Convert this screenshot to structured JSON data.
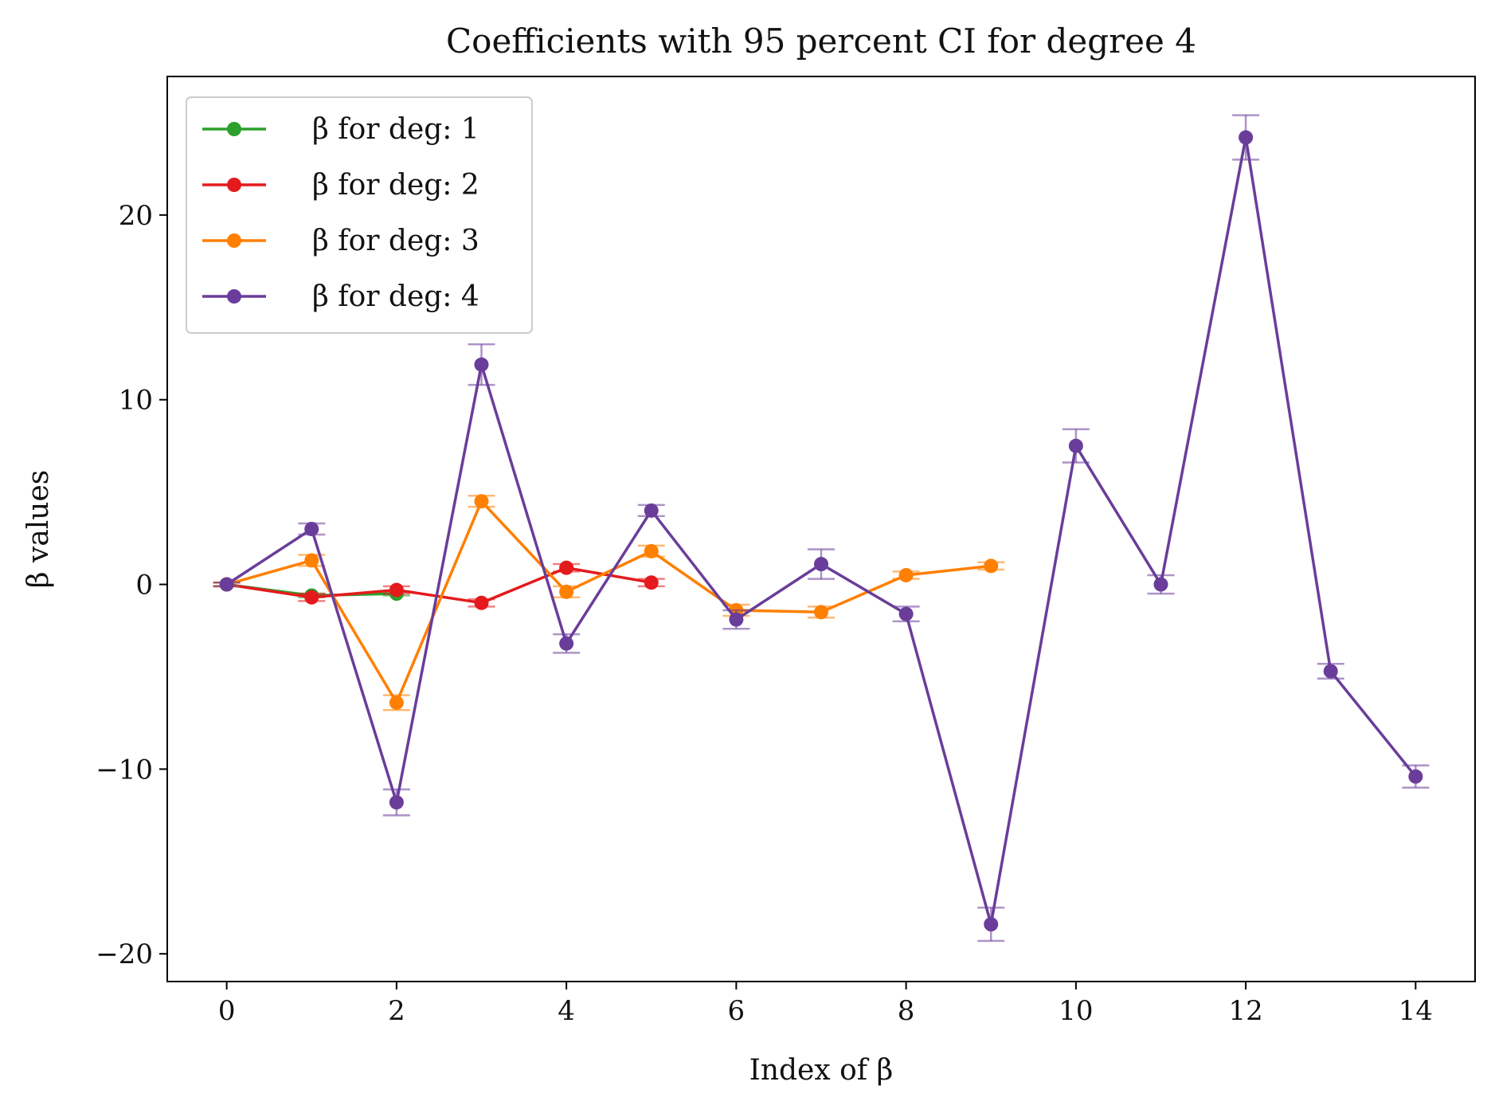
{
  "chart_data": {
    "type": "line",
    "title": "Coefficients with 95 percent CI for degree 4",
    "xlabel": "Index of β",
    "ylabel": "β values",
    "xlim": [
      -0.7,
      14.7
    ],
    "ylim": [
      -21.5,
      27.5
    ],
    "xticks": [
      0,
      2,
      4,
      6,
      8,
      10,
      12,
      14
    ],
    "xtick_labels": [
      "0",
      "2",
      "4",
      "6",
      "8",
      "10",
      "12",
      "14"
    ],
    "yticks": [
      -20,
      -10,
      0,
      10,
      20
    ],
    "ytick_labels": [
      "−20",
      "−10",
      "0",
      "10",
      "20"
    ],
    "grid": false,
    "legend_position": "top-left",
    "error_bars": "95 percent CI",
    "series": [
      {
        "name": "β for deg: 1",
        "color": "#2ca02c",
        "x": [
          0,
          1,
          2
        ],
        "y": [
          0.0,
          -0.6,
          -0.5
        ],
        "ci": [
          0.1,
          0.1,
          0.1
        ]
      },
      {
        "name": "β for deg: 2",
        "color": "#e41a1c",
        "x": [
          0,
          1,
          2,
          3,
          4,
          5
        ],
        "y": [
          0.0,
          -0.7,
          -0.3,
          -1.0,
          0.9,
          0.1
        ],
        "ci": [
          0.1,
          0.2,
          0.2,
          0.2,
          0.2,
          0.2
        ]
      },
      {
        "name": "β for deg: 3",
        "color": "#ff7f00",
        "x": [
          0,
          1,
          2,
          3,
          4,
          5,
          6,
          7,
          8,
          9
        ],
        "y": [
          0.0,
          1.3,
          -6.4,
          4.5,
          -0.4,
          1.8,
          -1.4,
          -1.5,
          0.5,
          1.0
        ],
        "ci": [
          0.1,
          0.3,
          0.4,
          0.3,
          0.3,
          0.3,
          0.3,
          0.3,
          0.2,
          0.2
        ]
      },
      {
        "name": "β for deg: 4",
        "color": "#6a3d9a",
        "x": [
          0,
          1,
          2,
          3,
          4,
          5,
          6,
          7,
          8,
          9,
          10,
          11,
          12,
          13,
          14
        ],
        "y": [
          0.0,
          3.0,
          -11.8,
          11.9,
          -3.2,
          4.0,
          -1.9,
          1.1,
          -1.6,
          -18.4,
          7.5,
          0.0,
          24.2,
          -4.7,
          -10.4
        ],
        "ci": [
          0.1,
          0.3,
          0.7,
          1.1,
          0.5,
          0.3,
          0.5,
          0.8,
          0.4,
          0.9,
          0.9,
          0.5,
          1.2,
          0.4,
          0.6
        ]
      }
    ]
  }
}
